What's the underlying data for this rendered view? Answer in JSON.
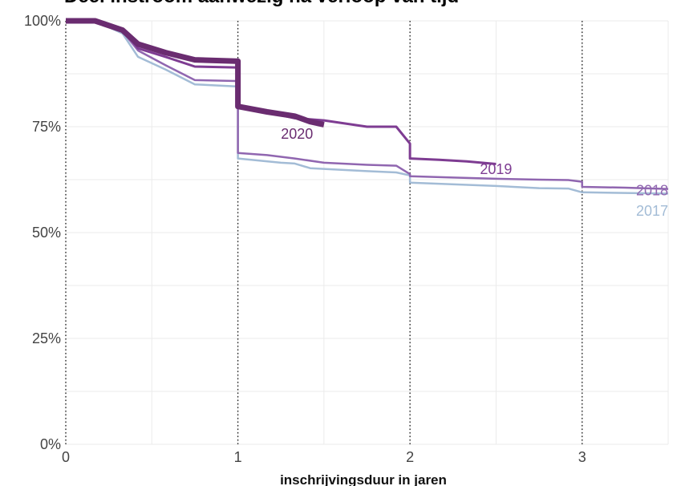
{
  "chart_data": {
    "type": "line",
    "title": "Deel instroom aanwezig na verloop van tijd",
    "xlabel": "inschrijvingsduur in jaren",
    "ylabel": "",
    "xlim": [
      0,
      3.5
    ],
    "ylim": [
      0,
      100
    ],
    "x_ticks": [
      {
        "value": 0,
        "label": "0"
      },
      {
        "value": 1,
        "label": "1"
      },
      {
        "value": 2,
        "label": "2"
      },
      {
        "value": 3,
        "label": "3"
      }
    ],
    "y_ticks": [
      {
        "value": 0,
        "label": "0%"
      },
      {
        "value": 25,
        "label": "25%"
      },
      {
        "value": 50,
        "label": "50%"
      },
      {
        "value": 75,
        "label": "75%"
      },
      {
        "value": 100,
        "label": "100%"
      }
    ],
    "vertical_markers": [
      0,
      1,
      2,
      3
    ],
    "grid": true,
    "series": [
      {
        "name": "2017",
        "color": "#a3bcd6",
        "width": 2.5,
        "label_at": [
          3.5,
          54
        ],
        "points": [
          [
            0,
            100
          ],
          [
            0.17,
            100
          ],
          [
            0.33,
            97
          ],
          [
            0.42,
            91.5
          ],
          [
            0.58,
            88.5
          ],
          [
            0.75,
            85
          ],
          [
            0.99,
            84.5
          ],
          [
            1.0,
            84.5
          ],
          [
            1.0,
            67.5
          ],
          [
            1.25,
            66.5
          ],
          [
            1.33,
            66.3
          ],
          [
            1.42,
            65.2
          ],
          [
            1.75,
            64.5
          ],
          [
            1.92,
            64.2
          ],
          [
            2.0,
            63.5
          ],
          [
            2.0,
            61.8
          ],
          [
            2.5,
            61.0
          ],
          [
            2.75,
            60.5
          ],
          [
            2.92,
            60.4
          ],
          [
            3.0,
            59.5
          ],
          [
            3.5,
            59.2
          ]
        ]
      },
      {
        "name": "2018",
        "color": "#9066b0",
        "width": 2.5,
        "label_at": [
          3.5,
          58.8
        ],
        "points": [
          [
            0,
            100
          ],
          [
            0.17,
            100
          ],
          [
            0.33,
            97.5
          ],
          [
            0.42,
            93.0
          ],
          [
            0.58,
            89.5
          ],
          [
            0.75,
            86.0
          ],
          [
            0.99,
            85.8
          ],
          [
            1.0,
            85.8
          ],
          [
            1.0,
            68.8
          ],
          [
            1.17,
            68.3
          ],
          [
            1.33,
            67.5
          ],
          [
            1.5,
            66.5
          ],
          [
            1.75,
            66.0
          ],
          [
            1.92,
            65.8
          ],
          [
            2.0,
            63.8
          ],
          [
            2.0,
            63.3
          ],
          [
            2.25,
            63.0
          ],
          [
            2.5,
            62.7
          ],
          [
            2.75,
            62.5
          ],
          [
            2.92,
            62.4
          ],
          [
            3.0,
            62.0
          ],
          [
            3.0,
            60.8
          ],
          [
            3.25,
            60.6
          ],
          [
            3.5,
            60.3
          ]
        ]
      },
      {
        "name": "2019",
        "color": "#7e3c92",
        "width": 3,
        "label_at": [
          2.5,
          63.8
        ],
        "points": [
          [
            0,
            100
          ],
          [
            0.17,
            100
          ],
          [
            0.33,
            98
          ],
          [
            0.42,
            93.5
          ],
          [
            0.58,
            91.5
          ],
          [
            0.75,
            89.2
          ],
          [
            0.99,
            89.0
          ],
          [
            1.0,
            89.0
          ],
          [
            1.0,
            79.5
          ],
          [
            1.17,
            78.5
          ],
          [
            1.33,
            77.0
          ],
          [
            1.5,
            76.5
          ],
          [
            1.75,
            75.0
          ],
          [
            1.92,
            75.0
          ],
          [
            2.0,
            71.0
          ],
          [
            2.0,
            67.5
          ],
          [
            2.17,
            67.2
          ],
          [
            2.33,
            66.8
          ],
          [
            2.5,
            66.2
          ]
        ]
      },
      {
        "name": "2020",
        "color": "#6a2c70",
        "width": 7,
        "label_at": [
          1.25,
          72.2
        ],
        "points": [
          [
            0,
            100
          ],
          [
            0.17,
            100
          ],
          [
            0.33,
            97.8
          ],
          [
            0.42,
            94.5
          ],
          [
            0.58,
            92.5
          ],
          [
            0.75,
            90.8
          ],
          [
            0.99,
            90.5
          ],
          [
            1.0,
            90.5
          ],
          [
            1.0,
            79.8
          ],
          [
            1.17,
            78.5
          ],
          [
            1.33,
            77.5
          ],
          [
            1.42,
            76.2
          ],
          [
            1.5,
            75.5
          ]
        ]
      }
    ]
  }
}
